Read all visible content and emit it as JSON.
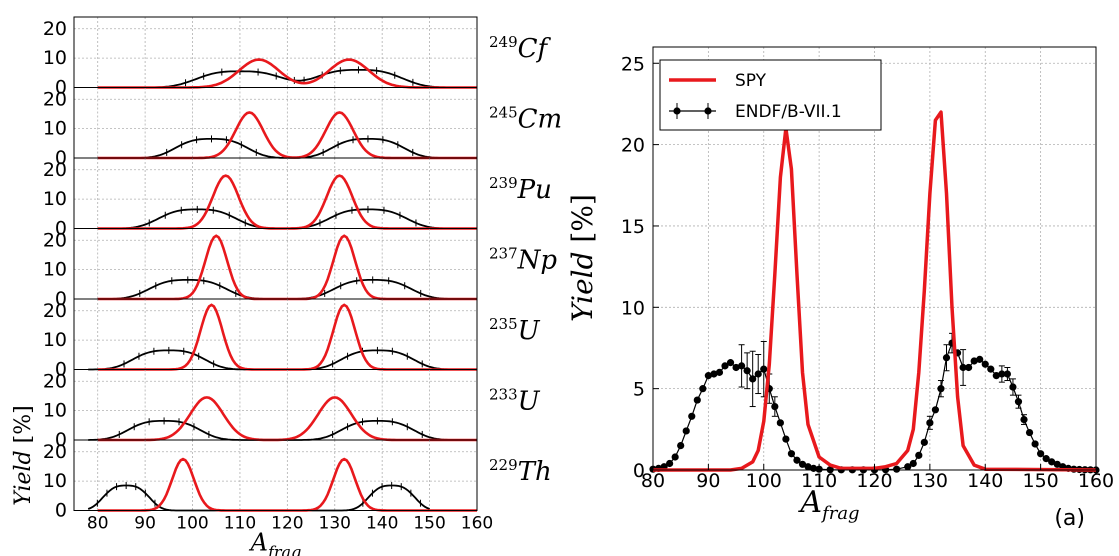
{
  "chart_data": [
    {
      "type": "line",
      "title": "",
      "panels": [
        {
          "isotope_mass": "249",
          "isotope_symbol": "Cf",
          "spy_peaks": [
            [
              114,
              9.5,
              4.2
            ],
            [
              133,
              9.5,
              4.2
            ]
          ],
          "endf": {
            "a_start": 86,
            "a_end": 154,
            "peaks": [
              [
                110,
                5.5,
                8.5
              ],
              [
                135,
                6.0,
                8.5
              ]
            ]
          }
        },
        {
          "isotope_mass": "245",
          "isotope_symbol": "Cm",
          "spy_peaks": [
            [
              112,
              15.5,
              2.9
            ],
            [
              131,
              15.5,
              2.9
            ]
          ],
          "endf": {
            "a_start": 84,
            "a_end": 152,
            "peaks": [
              [
                104,
                6.5,
                7.0
              ],
              [
                137,
                6.5,
                7.0
              ]
            ]
          }
        },
        {
          "isotope_mass": "239",
          "isotope_symbol": "Pu",
          "spy_peaks": [
            [
              107,
              18,
              2.7
            ],
            [
              131,
              18,
              2.7
            ]
          ],
          "endf": {
            "a_start": 80,
            "a_end": 158,
            "peaks": [
              [
                101,
                6.5,
                7.5
              ],
              [
                137,
                6.5,
                7.5
              ]
            ]
          }
        },
        {
          "isotope_mass": "237",
          "isotope_symbol": "Np",
          "spy_peaks": [
            [
              105,
              21.5,
              2.3
            ],
            [
              132,
              21.5,
              2.3
            ]
          ],
          "endf": {
            "a_start": 80,
            "a_end": 155,
            "peaks": [
              [
                99,
                6.5,
                7.5
              ],
              [
                138,
                6.5,
                7.5
              ]
            ]
          }
        },
        {
          "isotope_mass": "235",
          "isotope_symbol": "U",
          "spy_peaks": [
            [
              104,
              22,
              2.3
            ],
            [
              132,
              22,
              2.3
            ]
          ],
          "endf": {
            "a_start": 78,
            "a_end": 156,
            "peaks": [
              [
                95,
                6.5,
                7.0
              ],
              [
                139,
                6.5,
                7.0
              ]
            ]
          }
        },
        {
          "isotope_mass": "233",
          "isotope_symbol": "U",
          "spy_peaks": [
            [
              103,
              14.5,
              3.5
            ],
            [
              130,
              14.5,
              3.5
            ]
          ],
          "endf": {
            "a_start": 78,
            "a_end": 158,
            "peaks": [
              [
                94,
                6.5,
                7.0
              ],
              [
                139,
                6.5,
                7.0
              ]
            ]
          }
        },
        {
          "isotope_mass": "229",
          "isotope_symbol": "Th",
          "spy_peaks": [
            [
              98,
              17.5,
              2.3
            ],
            [
              132,
              17.5,
              2.3
            ]
          ],
          "endf": {
            "a_start": 78,
            "a_end": 150,
            "peaks": [
              [
                86,
                8.5,
                4.5
              ],
              [
                142,
                8.5,
                4.5
              ]
            ]
          }
        }
      ],
      "x_ticks": [
        80,
        90,
        100,
        110,
        120,
        130,
        140,
        150,
        160
      ],
      "y_ticks": [
        0,
        10,
        20
      ],
      "xlim": [
        75,
        160
      ],
      "ylim": [
        0,
        24
      ],
      "xlabel": "A_frag",
      "ylabel": "Yield [%]",
      "grid": true,
      "series": [
        {
          "name": "SPY",
          "color": "#e8191d"
        },
        {
          "name": "ENDF/B-VII.1",
          "color": "#000000"
        }
      ]
    },
    {
      "type": "line",
      "panel_label": "(a)",
      "x_ticks": [
        80,
        90,
        100,
        110,
        120,
        130,
        140,
        150,
        160
      ],
      "y_ticks": [
        0,
        5,
        10,
        15,
        20,
        25
      ],
      "xlim": [
        80,
        160
      ],
      "ylim": [
        0,
        26
      ],
      "xlabel": "A_frag",
      "ylabel": "Yield [%]",
      "grid": true,
      "legend": {
        "position": "top-left",
        "entries": [
          "SPY",
          "ENDF/B-VII.1"
        ]
      },
      "series": [
        {
          "name": "SPY",
          "color": "#e8191d",
          "x": [
            80,
            94,
            96,
            98,
            99,
            100,
            101,
            102,
            103,
            104,
            105,
            106,
            107,
            108,
            110,
            112,
            114,
            116,
            118,
            120,
            122,
            124,
            126,
            127,
            128,
            129,
            130,
            131,
            132,
            133,
            134,
            135,
            136,
            138,
            140,
            160
          ],
          "y": [
            0,
            0,
            0.1,
            0.5,
            1.2,
            3.0,
            6.5,
            12.0,
            18.0,
            21.0,
            18.5,
            12.0,
            6.0,
            2.8,
            0.8,
            0.3,
            0.1,
            0.1,
            0.1,
            0.1,
            0.2,
            0.4,
            1.2,
            2.5,
            6.0,
            11.0,
            17.0,
            21.5,
            22.0,
            17.0,
            10.0,
            4.5,
            1.5,
            0.3,
            0.05,
            0
          ]
        },
        {
          "name": "ENDF/B-VII.1",
          "color": "#000000",
          "x": [
            80,
            81,
            82,
            83,
            84,
            85,
            86,
            87,
            88,
            89,
            90,
            91,
            92,
            93,
            94,
            95,
            96,
            97,
            98,
            99,
            100,
            101,
            102,
            103,
            104,
            105,
            106,
            107,
            108,
            109,
            110,
            112,
            114,
            116,
            118,
            120,
            122,
            124,
            126,
            127,
            128,
            129,
            130,
            131,
            132,
            133,
            134,
            135,
            136,
            137,
            138,
            139,
            140,
            141,
            142,
            143,
            144,
            145,
            146,
            147,
            148,
            149,
            150,
            151,
            152,
            153,
            154,
            155,
            156,
            157,
            158,
            159,
            160
          ],
          "y": [
            0.05,
            0.1,
            0.2,
            0.4,
            0.8,
            1.5,
            2.4,
            3.3,
            4.3,
            5.0,
            5.8,
            5.9,
            6.0,
            6.4,
            6.6,
            6.3,
            6.4,
            6.1,
            5.6,
            5.9,
            6.2,
            5.0,
            3.9,
            2.9,
            1.9,
            1.0,
            0.6,
            0.35,
            0.2,
            0.1,
            0.05,
            0.02,
            0.01,
            0.01,
            0.01,
            0.01,
            0.02,
            0.05,
            0.2,
            0.4,
            0.9,
            1.7,
            2.9,
            3.7,
            5.0,
            6.9,
            7.8,
            7.2,
            6.3,
            6.3,
            6.7,
            6.8,
            6.5,
            6.2,
            5.8,
            5.9,
            5.9,
            5.1,
            4.2,
            3.1,
            2.3,
            1.6,
            1.0,
            0.7,
            0.5,
            0.35,
            0.2,
            0.1,
            0.05,
            0.03,
            0.02,
            0.01,
            0.0
          ]
        }
      ],
      "error_bars": [
        {
          "x": 96,
          "y": 6.4,
          "err": 1.3
        },
        {
          "x": 97,
          "y": 6.1,
          "err": 1.1
        },
        {
          "x": 98,
          "y": 5.6,
          "err": 1.7
        },
        {
          "x": 99,
          "y": 5.9,
          "err": 1.2
        },
        {
          "x": 100,
          "y": 6.2,
          "err": 1.7
        },
        {
          "x": 101,
          "y": 5.0,
          "err": 0.9
        },
        {
          "x": 102,
          "y": 3.9,
          "err": 0.6
        },
        {
          "x": 130,
          "y": 2.9,
          "err": 0.4
        },
        {
          "x": 132,
          "y": 5.0,
          "err": 0.5
        },
        {
          "x": 133,
          "y": 6.9,
          "err": 0.8
        },
        {
          "x": 134,
          "y": 7.8,
          "err": 0.6
        },
        {
          "x": 136,
          "y": 6.3,
          "err": 1.1
        },
        {
          "x": 143,
          "y": 5.9,
          "err": 0.5
        },
        {
          "x": 144,
          "y": 5.9,
          "err": 0.4
        },
        {
          "x": 145,
          "y": 5.1,
          "err": 0.5
        },
        {
          "x": 146,
          "y": 4.2,
          "err": 0.4
        },
        {
          "x": 147,
          "y": 3.1,
          "err": 0.3
        }
      ]
    }
  ]
}
